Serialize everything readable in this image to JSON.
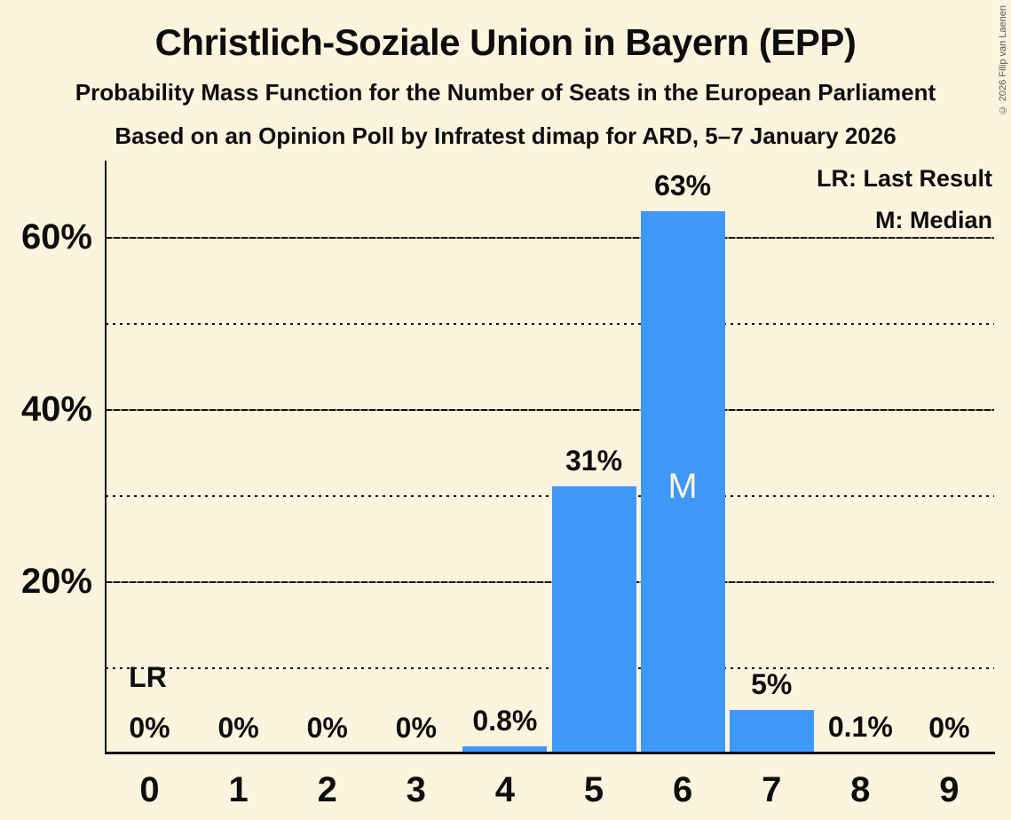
{
  "header": {
    "title": "Christlich-Soziale Union in Bayern (EPP)",
    "subtitle": "Probability Mass Function for the Number of Seats in the European Parliament",
    "source_line": "Based on an Opinion Poll by Infratest dimap for ARD, 5–7 January 2026",
    "copyright": "© 2026 Filip van Laenen"
  },
  "legend": {
    "lr_label": "LR: Last Result",
    "m_label": "M: Median"
  },
  "colors": {
    "background": "#FCF4DE",
    "bar": "#3E99FA",
    "text": "#0D0D0D",
    "median_text": "#FCF4DE",
    "copyright_text": "#555555"
  },
  "chart_data": {
    "type": "bar",
    "title": "Christlich-Soziale Union in Bayern (EPP)",
    "subtitle": "Probability Mass Function for the Number of Seats in the European Parliament",
    "xlabel": "",
    "ylabel": "",
    "categories": [
      "0",
      "1",
      "2",
      "3",
      "4",
      "5",
      "6",
      "7",
      "8",
      "9"
    ],
    "values": [
      0,
      0,
      0,
      0,
      0.8,
      31,
      63,
      5,
      0.1,
      0
    ],
    "value_labels": [
      "0%",
      "0%",
      "0%",
      "0%",
      "0.8%",
      "31%",
      "63%",
      "5%",
      "0.1%",
      "0%"
    ],
    "ylim": [
      0,
      69
    ],
    "yticks": [
      {
        "value": 20,
        "label": "20%"
      },
      {
        "value": 40,
        "label": "40%"
      },
      {
        "value": 60,
        "label": "60%"
      }
    ],
    "gridlines_solid": [
      20,
      40,
      60
    ],
    "gridlines_dotted": [
      10,
      30,
      50
    ],
    "grid": true,
    "legend_position": "top-right",
    "annotations": [
      {
        "text": "LR",
        "meaning": "Last Result",
        "seat": "0"
      },
      {
        "text": "M",
        "meaning": "Median",
        "seat": "6"
      }
    ]
  }
}
